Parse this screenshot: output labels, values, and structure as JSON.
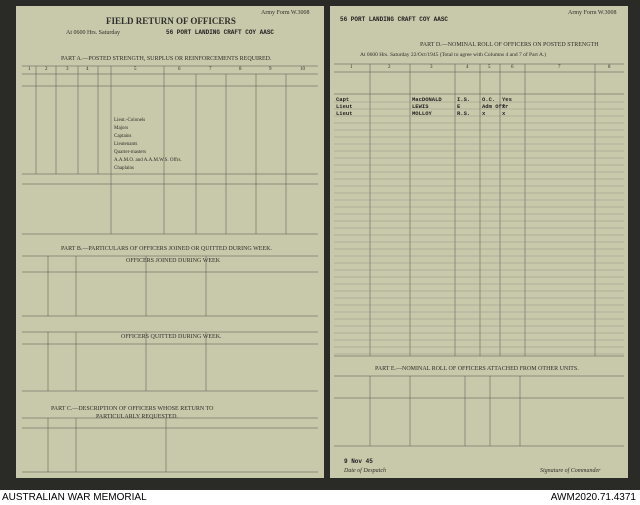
{
  "footer": {
    "left": "AUSTRALIAN WAR MEMORIAL",
    "right": "AWM2020.71.4371"
  },
  "left_page": {
    "form_ref": "Army Form W.3008",
    "title": "FIELD RETURN OF OFFICERS",
    "unit": "56 PORT LANDING CRAFT COY AASC",
    "date_line": "At 0600 Hrs. Saturday",
    "part_a": "PART A.—POSTED STRENGTH, SURPLUS OR REINFORCEMENTS REQUIRED.",
    "column_numbers": [
      "1",
      "2",
      "3",
      "4",
      "5",
      "6",
      "7",
      "8",
      "9",
      "10"
    ],
    "ranks": [
      "Lieut.-Colonels",
      "Majors",
      "Captains",
      "Lieutenants",
      "Quarter-masters",
      "A.A.M.O. and A.A.M.W.S. Offrs.",
      "Chaplains"
    ],
    "part_b": "PART B.—PARTICULARS OF OFFICERS JOINED OR QUITTED DURING WEEK.",
    "joined": "OFFICERS JOINED DURING WEEK",
    "quitted": "OFFICERS QUITTED DURING WEEK.",
    "part_c": "PART C.—DESCRIPTION OF OFFICERS WHOSE RETURN TO",
    "part_c2": "PARTICULARLY REQUESTED."
  },
  "right_page": {
    "form_ref": "Army Form W.3008",
    "unit": "56 PORT LANDING CRAFT COY AASC",
    "part_d": "PART D.—NOMINAL ROLL OF OFFICERS ON POSTED STRENGTH",
    "date_line": "At 0600 Hrs. Saturday 22/Oct/1945 (Total to agree with Columns 4 and 7 of Part A.)",
    "column_numbers": [
      "1",
      "2",
      "3",
      "4",
      "5",
      "6",
      "7",
      "8"
    ],
    "rows": [
      [
        "Capt",
        "MacDONALD",
        "I.S.",
        "O.C.",
        "Yes"
      ],
      [
        "Lieut",
        "LEWIS",
        "E",
        "Adm Offr",
        "x"
      ],
      [
        "Lieut",
        "MOLLOY",
        "R.S.",
        "x",
        "x"
      ]
    ],
    "part_e": "PART E.—NOMINAL ROLL OF OFFICERS ATTACHED FROM OTHER UNITS.",
    "despatch_date": "9 Nov 45",
    "despatch_label": "Date of Despatch",
    "signature_label": "Signature of Commander"
  }
}
